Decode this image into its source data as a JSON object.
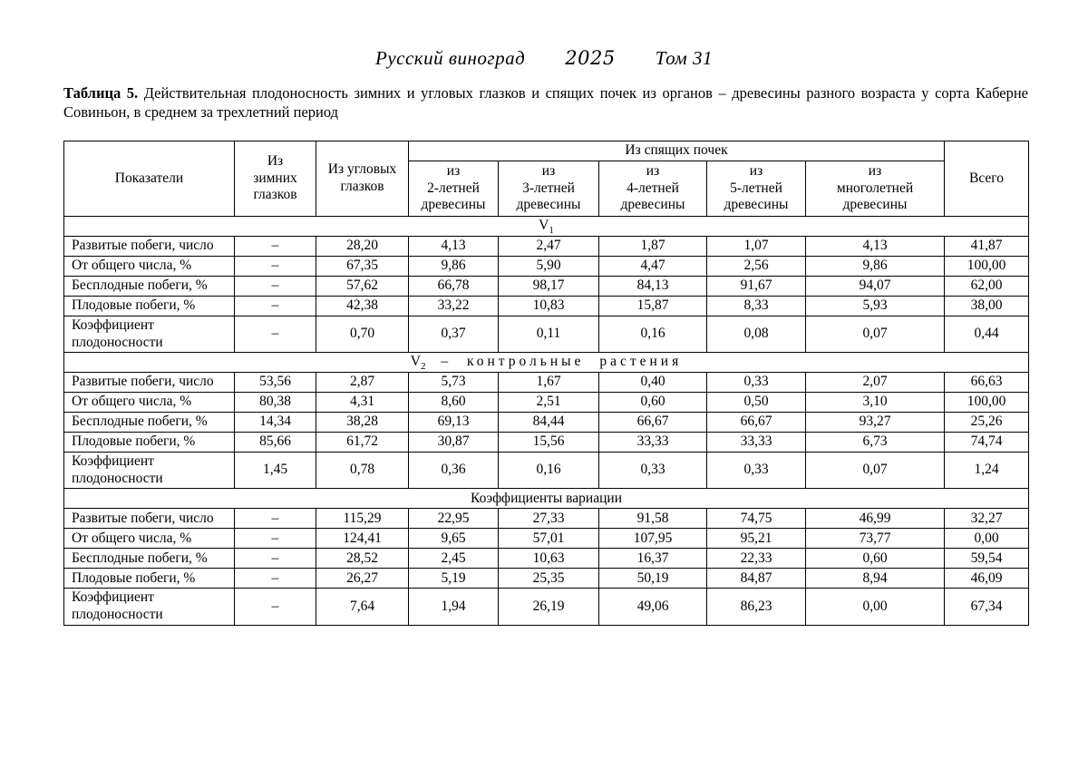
{
  "runhead": {
    "journal": "Русский виноград",
    "year": "2025",
    "volume": "Том 31"
  },
  "caption": {
    "label": "Таблица 5.",
    "text": " Действительная плодоносность зимних и угловых глазков и спящих почек из органов – древесины разного возраста у сорта Каберне Совиньон, в среднем за трехлетний период"
  },
  "table": {
    "header": {
      "indicators": "Показатели",
      "winter_buds": "Из\nзимних\nглазков",
      "angular_buds": "Из угловых\nглазков",
      "dormant_group": "Из спящих почек",
      "dormant_subcols": [
        "из\n2-летней\nдревесины",
        "из\n3-летней\nдревесины",
        "из\n4-летней\nдревесины",
        "из\n5-летней\nдревесины",
        "из\nмноголетней\nдревесины"
      ],
      "total": "Всего"
    },
    "sections": [
      {
        "heading": {
          "base": "V",
          "sub": "1",
          "tail": ""
        },
        "rows": [
          {
            "label": "Развитые побеги, число",
            "values": [
              "–",
              "28,20",
              "4,13",
              "2,47",
              "1,87",
              "1,07",
              "4,13",
              "41,87"
            ]
          },
          {
            "label": "От общего числа, %",
            "values": [
              "–",
              "67,35",
              "9,86",
              "5,90",
              "4,47",
              "2,56",
              "9,86",
              "100,00"
            ]
          },
          {
            "label": "Бесплодные побеги, %",
            "values": [
              "–",
              "57,62",
              "66,78",
              "98,17",
              "84,13",
              "91,67",
              "94,07",
              "62,00"
            ]
          },
          {
            "label": "Плодовые побеги, %",
            "values": [
              "–",
              "42,38",
              "33,22",
              "10,83",
              "15,87",
              "8,33",
              "5,93",
              "38,00"
            ]
          },
          {
            "label": "Коэффициент плодоносности",
            "values": [
              "–",
              "0,70",
              "0,37",
              "0,11",
              "0,16",
              "0,08",
              "0,07",
              "0,44"
            ]
          }
        ]
      },
      {
        "heading": {
          "base": "V",
          "sub": "2",
          "tail": "– контрольные растения"
        },
        "rows": [
          {
            "label": "Развитые побеги, число",
            "values": [
              "53,56",
              "2,87",
              "5,73",
              "1,67",
              "0,40",
              "0,33",
              "2,07",
              "66,63"
            ]
          },
          {
            "label": "От общего числа, %",
            "values": [
              "80,38",
              "4,31",
              "8,60",
              "2,51",
              "0,60",
              "0,50",
              "3,10",
              "100,00"
            ]
          },
          {
            "label": "Бесплодные побеги, %",
            "values": [
              "14,34",
              "38,28",
              "69,13",
              "84,44",
              "66,67",
              "66,67",
              "93,27",
              "25,26"
            ]
          },
          {
            "label": "Плодовые побеги, %",
            "values": [
              "85,66",
              "61,72",
              "30,87",
              "15,56",
              "33,33",
              "33,33",
              "6,73",
              "74,74"
            ]
          },
          {
            "label": "Коэффициент плодоносности",
            "values": [
              "1,45",
              "0,78",
              "0,36",
              "0,16",
              "0,33",
              "0,33",
              "0,07",
              "1,24"
            ]
          }
        ]
      },
      {
        "heading": {
          "base": "Коэффициенты вариации",
          "sub": "",
          "tail": ""
        },
        "rows": [
          {
            "label": "Развитые побеги, число",
            "values": [
              "–",
              "115,29",
              "22,95",
              "27,33",
              "91,58",
              "74,75",
              "46,99",
              "32,27"
            ]
          },
          {
            "label": "От общего числа, %",
            "values": [
              "–",
              "124,41",
              "9,65",
              "57,01",
              "107,95",
              "95,21",
              "73,77",
              "0,00"
            ]
          },
          {
            "label": "Бесплодные побеги, %",
            "values": [
              "–",
              "28,52",
              "2,45",
              "10,63",
              "16,37",
              "22,33",
              "0,60",
              "59,54"
            ]
          },
          {
            "label": "Плодовые побеги, %",
            "values": [
              "–",
              "26,27",
              "5,19",
              "25,35",
              "50,19",
              "84,87",
              "8,94",
              "46,09"
            ]
          },
          {
            "label": "Коэффициент плодоносности",
            "values": [
              "–",
              "7,64",
              "1,94",
              "26,19",
              "49,06",
              "86,23",
              "0,00",
              "67,34"
            ]
          }
        ]
      }
    ]
  }
}
